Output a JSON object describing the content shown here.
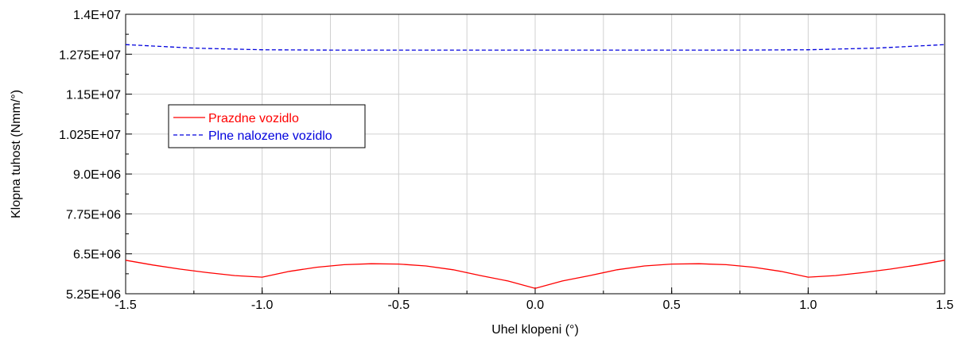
{
  "chart_data": {
    "type": "line",
    "xlabel": "Uhel klopeni (°)",
    "ylabel": "Klopna tuhost (Nmm/°)",
    "xlim": [
      -1.5,
      1.5
    ],
    "ylim": [
      5250000,
      14000000
    ],
    "x_ticks": [
      -1.5,
      -1.0,
      -0.5,
      0.0,
      0.5,
      1.0,
      1.5
    ],
    "x_tick_labels": [
      "-1.5",
      "-1.0",
      "-0.5",
      "0.0",
      "0.5",
      "1.0",
      "1.5"
    ],
    "y_ticks": [
      5250000,
      6500000,
      7750000,
      9000000,
      10250000,
      11500000,
      12750000,
      14000000
    ],
    "y_tick_labels": [
      "5.25E+06",
      "6.5E+06",
      "7.75E+06",
      "9.0E+06",
      "1.025E+07",
      "1.15E+07",
      "1.275E+07",
      "1.4E+07"
    ],
    "grid": true,
    "legend": {
      "position": "upper-left"
    },
    "series": [
      {
        "name": "Prazdne vozidlo",
        "color": "#ff0000",
        "style": "solid",
        "x": [
          -1.5,
          -1.4,
          -1.3,
          -1.2,
          -1.1,
          -1.0,
          -0.9,
          -0.8,
          -0.7,
          -0.6,
          -0.5,
          -0.4,
          -0.3,
          -0.2,
          -0.1,
          0.0,
          0.1,
          0.2,
          0.3,
          0.4,
          0.5,
          0.6,
          0.7,
          0.8,
          0.9,
          1.0,
          1.1,
          1.2,
          1.3,
          1.4,
          1.5
        ],
        "y": [
          6300000,
          6150000,
          6020000,
          5910000,
          5820000,
          5770000,
          5950000,
          6080000,
          6160000,
          6190000,
          6180000,
          6120000,
          6000000,
          5820000,
          5650000,
          5420000,
          5650000,
          5820000,
          6000000,
          6120000,
          6180000,
          6190000,
          6160000,
          6080000,
          5950000,
          5770000,
          5820000,
          5910000,
          6020000,
          6150000,
          6300000
        ]
      },
      {
        "name": "Plne nalozene vozidlo",
        "color": "#0000dd",
        "style": "dashed",
        "x": [
          -1.5,
          -1.25,
          -1.0,
          -0.75,
          -0.5,
          -0.25,
          0.0,
          0.25,
          0.5,
          0.75,
          1.0,
          1.25,
          1.5
        ],
        "y": [
          13050000,
          12940000,
          12890000,
          12880000,
          12880000,
          12880000,
          12880000,
          12880000,
          12880000,
          12880000,
          12890000,
          12940000,
          13050000
        ]
      }
    ]
  }
}
